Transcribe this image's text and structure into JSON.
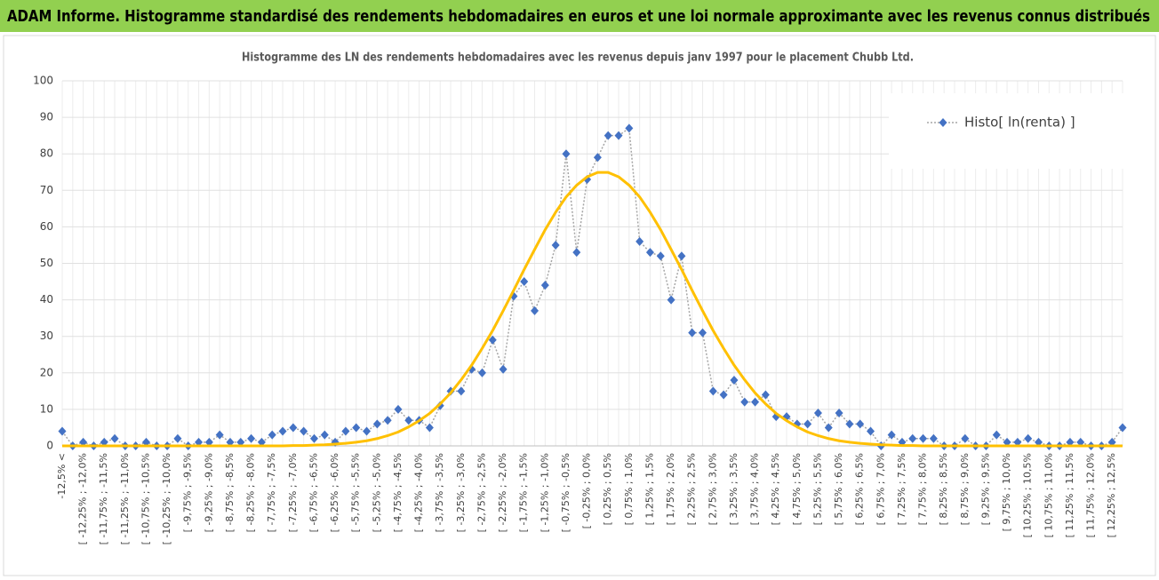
{
  "header": {
    "title": "ADAM Informe. Histogramme standardisé des rendements hebdomadaires en euros et une loi normale approximante avec les revenus connus distribués"
  },
  "chart_data": {
    "type": "line",
    "title": "Histogramme des LN des rendements hebdomadaires avec les revenus depuis janv 1997 pour le placement Chubb Ltd.",
    "categories": [
      "-12,5% <",
      null,
      "[ -12,25% ; -12,0%",
      null,
      "[ -11,75% ; -11,5%",
      null,
      "[ -11,25% ; -11,0%",
      null,
      "[ -10,75% ; -10,5%",
      null,
      "[ -10,25% ; -10,0%",
      null,
      "[ -9,75% ; -9,5%",
      null,
      "[ -9,25% ; -9,0%",
      null,
      "[ -8,75% ; -8,5%",
      null,
      "[ -8,25% ; -8,0%",
      null,
      "[ -7,75% ; -7,5%",
      null,
      "[ -7,25% ; -7,0%",
      null,
      "[ -6,75% ; -6,5%",
      null,
      "[ -6,25% ; -6,0%",
      null,
      "[ -5,75% ; -5,5%",
      null,
      "[ -5,25% ; -5,0%",
      null,
      "[ -4,75% ; -4,5%",
      null,
      "[ -4,25% ; -4,0%",
      null,
      "[ -3,75% ; -3,5%",
      null,
      "[ -3,25% ; -3,0%",
      null,
      "[ -2,75% ; -2,5%",
      null,
      "[ -2,25% ; -2,0%",
      null,
      "[ -1,75% ; -1,5%",
      null,
      "[ -1,25% ; -1,0%",
      null,
      "[ -0,75% ; -0,5%",
      null,
      "[ -0,25% ; 0,0%",
      null,
      "[ 0,25% ; 0,5%",
      null,
      "[ 0,75% ; 1,0%",
      null,
      "[ 1,25% ; 1,5%",
      null,
      "[ 1,75% ; 2,0%",
      null,
      "[ 2,25% ; 2,5%",
      null,
      "[ 2,75% ; 3,0%",
      null,
      "[ 3,25% ; 3,5%",
      null,
      "[ 3,75% ; 4,0%",
      null,
      "[ 4,25% ; 4,5%",
      null,
      "[ 4,75% ; 5,0%",
      null,
      "[ 5,25% ; 5,5%",
      null,
      "[ 5,75% ; 6,0%",
      null,
      "[ 6,25% ; 6,5%",
      null,
      "[ 6,75% ; 7,0%",
      null,
      "[ 7,25% ; 7,5%",
      null,
      "[ 7,75% ; 8,0%",
      null,
      "[ 8,25% ; 8,5%",
      null,
      "[ 8,75% ; 9,0%",
      null,
      "[ 9,25% ; 9,5%",
      null,
      "[ 9,75% ; 10,0%",
      null,
      "[ 10,25% ; 10,5%",
      null,
      "[ 10,75% ; 11,0%",
      null,
      "[ 11,25% ; 11,5%",
      null,
      "[ 11,75% ; 12,0%",
      null,
      "[ 12,25% ; 12,5%",
      null
    ],
    "series": [
      {
        "name": "Histo[ ln(renta) ]",
        "color": "#4472c4",
        "values": [
          4,
          0,
          1,
          0,
          1,
          2,
          0,
          0,
          1,
          0,
          0,
          2,
          0,
          1,
          1,
          3,
          1,
          1,
          2,
          1,
          3,
          4,
          5,
          4,
          2,
          3,
          1,
          4,
          5,
          4,
          6,
          7,
          10,
          7,
          7,
          5,
          11,
          15,
          15,
          21,
          20,
          29,
          21,
          41,
          45,
          37,
          44,
          55,
          80,
          53,
          73,
          79,
          85,
          85,
          87,
          56,
          53,
          52,
          40,
          52,
          31,
          31,
          15,
          14,
          18,
          12,
          12,
          14,
          8,
          8,
          6,
          6,
          9,
          5,
          9,
          6,
          6,
          4,
          0,
          3,
          1,
          2,
          2,
          2,
          0,
          0,
          2,
          0,
          0,
          3,
          1,
          1,
          2,
          1,
          0,
          0,
          1,
          1,
          0,
          0,
          1,
          5
        ]
      },
      {
        "color": "#ffc000",
        "values": [
          0,
          0,
          0,
          0,
          0,
          0,
          0,
          0,
          0,
          0,
          0,
          0,
          0,
          0,
          0,
          0,
          0,
          0,
          0,
          0,
          0,
          0,
          0.1,
          0.1,
          0.2,
          0.3,
          0.5,
          0.7,
          1.0,
          1.4,
          2.0,
          2.8,
          3.8,
          5.2,
          6.9,
          8.9,
          11.5,
          14.5,
          18.1,
          22.1,
          26.7,
          31.6,
          37.0,
          42.6,
          48.3,
          53.8,
          59.2,
          64.0,
          68.2,
          71.4,
          73.7,
          74.9,
          74.9,
          73.7,
          71.4,
          68.2,
          64.0,
          59.2,
          53.8,
          48.3,
          42.6,
          37.0,
          31.6,
          26.7,
          22.1,
          18.1,
          14.5,
          11.5,
          8.9,
          6.9,
          5.2,
          3.8,
          2.8,
          2.0,
          1.4,
          1.0,
          0.7,
          0.5,
          0.3,
          0.2,
          0.1,
          0.1,
          0,
          0,
          0,
          0,
          0,
          0,
          0,
          0,
          0,
          0,
          0,
          0,
          0,
          0,
          0,
          0,
          0,
          0,
          0,
          0
        ]
      }
    ],
    "ylim": [
      0,
      100
    ],
    "yticks": [
      0,
      10,
      20,
      30,
      40,
      50,
      60,
      70,
      80,
      90,
      100
    ],
    "grid": true,
    "legend": "upper right"
  }
}
